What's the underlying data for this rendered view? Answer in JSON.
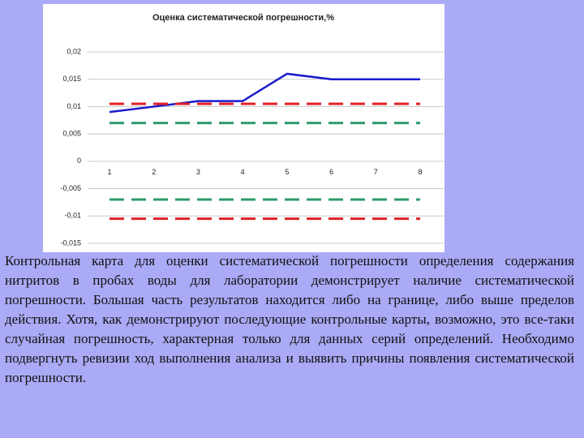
{
  "chart_data": {
    "type": "line",
    "title": "Оценка систематической погрешности,%",
    "categories": [
      "1",
      "2",
      "3",
      "4",
      "5",
      "6",
      "7",
      "8"
    ],
    "series": [
      {
        "color": "#1a1acc",
        "dash": false,
        "values": [
          0.009,
          0.01,
          0.011,
          0.011,
          0.016,
          0.015,
          0.015,
          0.015
        ]
      },
      {
        "color": "#e02028",
        "dash": true,
        "values": [
          0.0105,
          0.0105,
          0.0105,
          0.0105,
          0.0105,
          0.0105,
          0.0105,
          0.0105
        ]
      },
      {
        "color": "#2e9a6a",
        "dash": true,
        "values": [
          0.007,
          0.007,
          0.007,
          0.007,
          0.007,
          0.007,
          0.007,
          0.007
        ]
      },
      {
        "color": "#2e9a6a",
        "dash": true,
        "values": [
          -0.007,
          -0.007,
          -0.007,
          -0.007,
          -0.007,
          -0.007,
          -0.007,
          -0.007
        ]
      },
      {
        "color": "#e02028",
        "dash": true,
        "values": [
          -0.0105,
          -0.0105,
          -0.0105,
          -0.0105,
          -0.0105,
          -0.0105,
          -0.0105,
          -0.0105
        ]
      }
    ],
    "ylim": [
      -0.015,
      0.02
    ],
    "yticks": [
      {
        "value": 0.02,
        "label": "0,02"
      },
      {
        "value": 0.015,
        "label": "0,015"
      },
      {
        "value": 0.01,
        "label": "0,01"
      },
      {
        "value": 0.005,
        "label": "0,005"
      },
      0,
      {
        "value": -0.005,
        "label": "-0,005"
      },
      {
        "value": -0.01,
        "label": "-0,01"
      },
      {
        "value": -0.015,
        "label": "-0,015"
      }
    ],
    "grid": true
  },
  "caption": "Контрольная карта для оценки систематической погрешности определения содержания нитритов в пробах воды для лаборатории демонстрирует наличие систематической погрешности. Большая часть результатов находится либо на границе, либо выше пределов действия. Хотя, как демонстрируют последующие контрольные карты, возможно, это все-таки случайная погрешность, характерная только для данных серий определений. Необходимо подвергнуть ревизии ход выполнения анализа и выявить причины появления систематической погрешности."
}
